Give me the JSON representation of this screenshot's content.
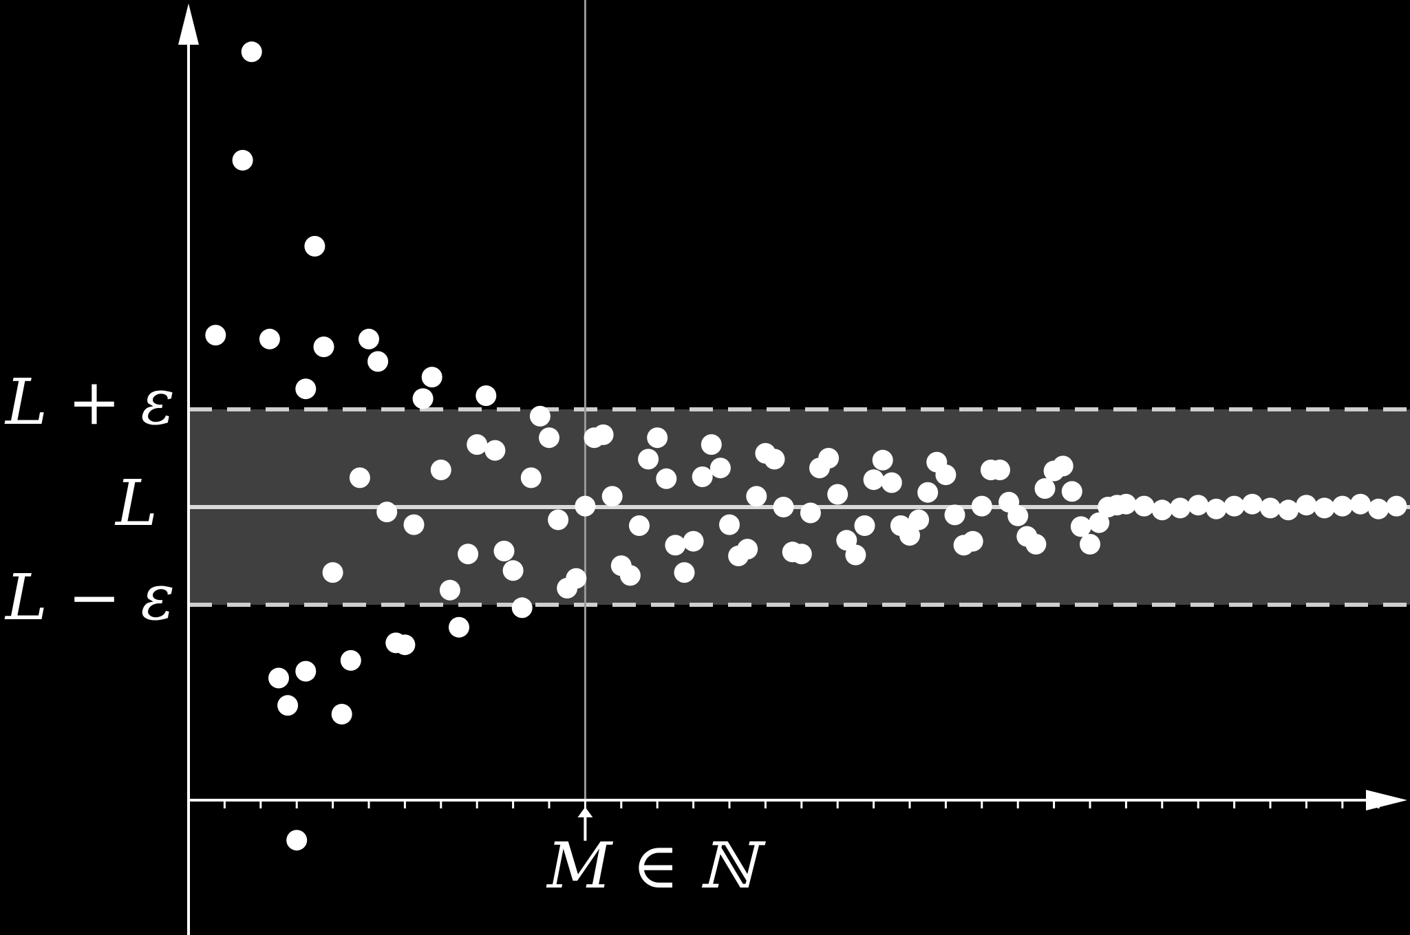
{
  "colors": {
    "background": "#000000",
    "band": "#404040",
    "axis": "#ffffff",
    "limit_line": "#d9d9d9",
    "dashed": "#cfcfcf",
    "point": "#ffffff"
  },
  "labels": {
    "upper": "L + ε",
    "limit": "L",
    "lower": "L − ε",
    "m_label": "M ∈ ℕ"
  },
  "chart_data": {
    "type": "scatter",
    "title": "",
    "xlabel": "",
    "ylabel": "",
    "description_values": {
      "limit_L": 0,
      "epsilon": 1,
      "M": 11
    },
    "xlim": [
      0,
      34
    ],
    "ylim": [
      -3,
      5
    ],
    "x_ticks": [
      1,
      2,
      3,
      4,
      5,
      6,
      7,
      8,
      9,
      10,
      11,
      12,
      13,
      14,
      15,
      16,
      17,
      18,
      19,
      20,
      21,
      22,
      23,
      24,
      25,
      26,
      27,
      28,
      29,
      30,
      31,
      32,
      33
    ],
    "scatter_points": [
      [
        0.75,
        1.76
      ],
      [
        1.5,
        3.55
      ],
      [
        1.75,
        4.66
      ],
      [
        2.25,
        1.72
      ],
      [
        2.5,
        -1.75
      ],
      [
        2.75,
        -2.03
      ],
      [
        3.0,
        -3.41
      ],
      [
        3.25,
        -1.68
      ],
      [
        3.25,
        1.21
      ],
      [
        3.5,
        2.67
      ],
      [
        3.75,
        1.64
      ],
      [
        4.0,
        -0.67
      ],
      [
        4.25,
        -2.12
      ],
      [
        4.5,
        -1.57
      ],
      [
        4.75,
        0.3
      ],
      [
        5.0,
        1.72
      ],
      [
        5.25,
        1.49
      ],
      [
        5.5,
        -0.05
      ],
      [
        5.75,
        -1.39
      ],
      [
        6.0,
        -1.41
      ],
      [
        6.25,
        -0.18
      ],
      [
        6.5,
        1.11
      ],
      [
        6.75,
        1.33
      ],
      [
        7.0,
        0.38
      ],
      [
        7.25,
        -0.85
      ],
      [
        7.5,
        -1.23
      ],
      [
        7.75,
        -0.48
      ],
      [
        8.0,
        0.64
      ],
      [
        8.25,
        1.14
      ],
      [
        8.5,
        0.58
      ],
      [
        8.75,
        -0.45
      ],
      [
        9.0,
        -0.65
      ],
      [
        9.25,
        -1.03
      ],
      [
        9.5,
        0.3
      ],
      [
        9.75,
        0.93
      ],
      [
        10.0,
        0.71
      ],
      [
        10.25,
        -0.13
      ],
      [
        10.5,
        -0.83
      ],
      [
        10.75,
        -0.73
      ],
      [
        11.0,
        0.01
      ],
      [
        11.25,
        0.71
      ],
      [
        11.5,
        0.74
      ],
      [
        11.75,
        0.11
      ],
      [
        12.0,
        -0.6
      ],
      [
        12.25,
        -0.7
      ],
      [
        12.5,
        -0.19
      ],
      [
        12.75,
        0.49
      ],
      [
        13.0,
        0.71
      ],
      [
        13.25,
        0.29
      ],
      [
        13.5,
        -0.39
      ],
      [
        13.75,
        -0.67
      ],
      [
        14.0,
        -0.35
      ],
      [
        14.25,
        0.31
      ],
      [
        14.5,
        0.64
      ],
      [
        14.75,
        0.4
      ],
      [
        15.0,
        -0.18
      ],
      [
        15.25,
        -0.5
      ],
      [
        15.5,
        -0.43
      ],
      [
        15.75,
        0.11
      ],
      [
        16.0,
        0.55
      ],
      [
        16.25,
        0.49
      ],
      [
        16.5,
        0.0
      ],
      [
        16.75,
        -0.46
      ],
      [
        17.0,
        -0.48
      ],
      [
        17.25,
        -0.06
      ],
      [
        17.5,
        0.4
      ],
      [
        17.75,
        0.5
      ],
      [
        18.0,
        0.13
      ],
      [
        18.25,
        -0.34
      ],
      [
        18.5,
        -0.49
      ],
      [
        18.75,
        -0.19
      ],
      [
        19.0,
        0.28
      ],
      [
        19.25,
        0.48
      ],
      [
        19.5,
        0.25
      ],
      [
        19.75,
        -0.19
      ],
      [
        20.0,
        -0.29
      ],
      [
        20.25,
        -0.13
      ],
      [
        20.5,
        0.15
      ],
      [
        20.75,
        0.46
      ],
      [
        21.0,
        0.33
      ],
      [
        21.25,
        -0.08
      ],
      [
        21.5,
        -0.39
      ],
      [
        21.75,
        -0.35
      ],
      [
        22.0,
        0.01
      ],
      [
        22.25,
        0.38
      ],
      [
        22.5,
        0.38
      ],
      [
        22.75,
        0.05
      ],
      [
        23.0,
        -0.09
      ],
      [
        23.25,
        -0.3
      ],
      [
        23.5,
        -0.38
      ],
      [
        23.75,
        0.19
      ],
      [
        24.0,
        0.37
      ],
      [
        24.25,
        0.42
      ],
      [
        24.5,
        0.16
      ],
      [
        24.75,
        -0.2
      ],
      [
        25.0,
        -0.38
      ],
      [
        25.25,
        -0.16
      ],
      [
        25.5,
        0.0
      ],
      [
        25.75,
        0.02
      ],
      [
        26.0,
        0.03
      ],
      [
        26.5,
        0.01
      ],
      [
        27.0,
        -0.03
      ],
      [
        27.5,
        -0.01
      ],
      [
        28.0,
        0.02
      ],
      [
        28.5,
        -0.02
      ],
      [
        29.0,
        0.01
      ],
      [
        29.5,
        0.03
      ],
      [
        30.0,
        -0.01
      ],
      [
        30.5,
        -0.03
      ],
      [
        31.0,
        0.02
      ],
      [
        31.5,
        -0.01
      ],
      [
        32.0,
        0.01
      ],
      [
        32.5,
        0.03
      ],
      [
        33.0,
        -0.02
      ],
      [
        33.5,
        0.01
      ]
    ]
  }
}
